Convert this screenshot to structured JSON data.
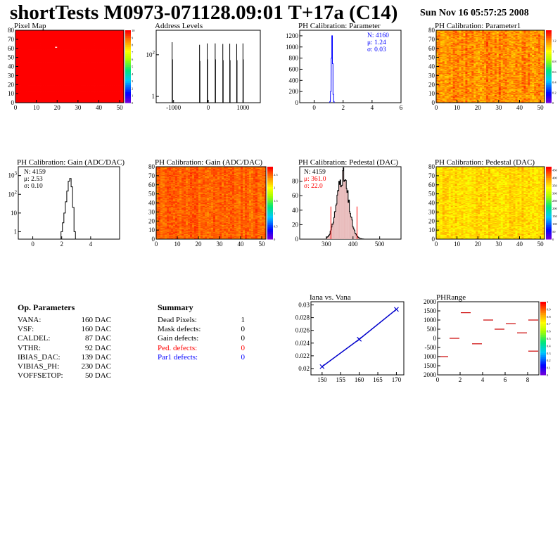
{
  "page": {
    "title": "shortTests M0973-071128.09:01 T+17a (C14)",
    "date": "Sun Nov 16 05:57:25 2008"
  },
  "op_parameters": {
    "header": "Op. Parameters",
    "rows": [
      {
        "name": "VANA:",
        "value": "160 DAC"
      },
      {
        "name": "VSF:",
        "value": "160 DAC"
      },
      {
        "name": "CALDEL:",
        "value": "87 DAC"
      },
      {
        "name": "VTHR:",
        "value": "92 DAC"
      },
      {
        "name": "IBIAS_DAC:",
        "value": "139 DAC"
      },
      {
        "name": "VIBIAS_PH:",
        "value": "230 DAC"
      },
      {
        "name": "VOFFSETOP:",
        "value": "50 DAC"
      }
    ]
  },
  "summary": {
    "header": "Summary",
    "rows": [
      {
        "name": "Dead Pixels:",
        "value": "1",
        "color": "#000000"
      },
      {
        "name": "Mask defects:",
        "value": "0",
        "color": "#000000"
      },
      {
        "name": "Gain defects:",
        "value": "0",
        "color": "#000000"
      },
      {
        "name": "Ped. defects:",
        "value": "0",
        "color": "#ff0000"
      },
      {
        "name": "Par1 defects:",
        "value": "0",
        "color": "#0000ff"
      }
    ]
  },
  "chart_data": [
    {
      "id": "pixel_map",
      "type": "heatmap",
      "title": "Pixel Map",
      "xlim": [
        0,
        52
      ],
      "ylim": [
        0,
        80
      ],
      "xticks": [
        "0",
        "10",
        "20",
        "30",
        "40",
        "50"
      ],
      "yticks": [
        "0",
        "10",
        "20",
        "30",
        "40",
        "50",
        "60",
        "70",
        "80"
      ],
      "zticks": [
        "0",
        "1",
        "2",
        "3",
        "4",
        "5",
        "6",
        "7",
        "8",
        "9",
        "10"
      ],
      "zlim": [
        0,
        10
      ],
      "uniform_value": 10,
      "special_cells": [
        {
          "x": 19,
          "y": 61,
          "value": 0
        }
      ]
    },
    {
      "id": "address_levels",
      "type": "bar",
      "title": "Address Levels",
      "log_y": true,
      "xlim": [
        -1500,
        1500
      ],
      "ylim": [
        0.5,
        1500
      ],
      "xticks": [
        "-1000",
        "0",
        "1000"
      ],
      "yticks": [
        "1",
        "10^2"
      ],
      "peaks": [
        {
          "x": -1040,
          "y": 400
        },
        {
          "x": -1030,
          "y": 60
        },
        {
          "x": -250,
          "y": 300
        },
        {
          "x": -240,
          "y": 50
        },
        {
          "x": -30,
          "y": 350
        },
        {
          "x": -20,
          "y": 60
        },
        {
          "x": 200,
          "y": 350
        },
        {
          "x": 210,
          "y": 60
        },
        {
          "x": 420,
          "y": 330
        },
        {
          "x": 430,
          "y": 55
        },
        {
          "x": 620,
          "y": 340
        },
        {
          "x": 630,
          "y": 55
        },
        {
          "x": 820,
          "y": 330
        },
        {
          "x": 830,
          "y": 55
        },
        {
          "x": 1000,
          "y": 350
        },
        {
          "x": 1010,
          "y": 60
        }
      ]
    },
    {
      "id": "ph_calib_param",
      "type": "bar",
      "title": "PH Calibration: Parameter",
      "xlim": [
        -1,
        6
      ],
      "ylim": [
        0,
        1300
      ],
      "xticks": [
        "0",
        "2",
        "4",
        "6"
      ],
      "yticks": [
        "0",
        "200",
        "400",
        "600",
        "800",
        "1000",
        "1200"
      ],
      "stats": [
        "N: 4160",
        "μ: 1.24",
        "σ: 0.03"
      ],
      "stats_color": "#0000ff",
      "line_color": "#0000ff",
      "bins": [
        {
          "x": 1.1,
          "y": 20
        },
        {
          "x": 1.15,
          "y": 200
        },
        {
          "x": 1.2,
          "y": 800
        },
        {
          "x": 1.24,
          "y": 1200
        },
        {
          "x": 1.28,
          "y": 700
        },
        {
          "x": 1.32,
          "y": 150
        },
        {
          "x": 1.36,
          "y": 20
        }
      ]
    },
    {
      "id": "ph_calib_param1",
      "type": "heatmap",
      "title": "PH Calibration: Parameter1",
      "xlim": [
        0,
        52
      ],
      "ylim": [
        0,
        80
      ],
      "xticks": [
        "0",
        "10",
        "20",
        "30",
        "40",
        "50"
      ],
      "yticks": [
        "0",
        "10",
        "20",
        "30",
        "40",
        "50",
        "60",
        "70",
        "80"
      ],
      "zticks": [
        "0",
        "0.2",
        "0.4",
        "0.6",
        "0.8",
        "1",
        "1.2"
      ],
      "zlim": [
        0,
        1.4
      ],
      "mean": 1.2,
      "spread": 0.08
    },
    {
      "id": "gain_hist",
      "type": "bar",
      "title": "PH Calibration: Gain (ADC/DAC)",
      "log_y": true,
      "xlim": [
        -1,
        6
      ],
      "ylim": [
        0.4,
        3000
      ],
      "xticks": [
        "0",
        "2",
        "4"
      ],
      "yticks": [
        "1",
        "10",
        "10^2",
        "10^3"
      ],
      "stats": [
        "N: 4159",
        "μ: 2.53",
        "σ: 0.10"
      ],
      "stats_color": "#000000",
      "line_color": "#000000",
      "bins": [
        {
          "x": 2.0,
          "y": 1
        },
        {
          "x": 2.1,
          "y": 3
        },
        {
          "x": 2.2,
          "y": 10
        },
        {
          "x": 2.3,
          "y": 40
        },
        {
          "x": 2.4,
          "y": 150
        },
        {
          "x": 2.5,
          "y": 500
        },
        {
          "x": 2.6,
          "y": 700
        },
        {
          "x": 2.7,
          "y": 250
        },
        {
          "x": 2.8,
          "y": 20
        },
        {
          "x": 2.9,
          "y": 1
        }
      ]
    },
    {
      "id": "gain_map",
      "type": "heatmap",
      "title": "PH Calibration: Gain (ADC/DAC)",
      "xlim": [
        0,
        52
      ],
      "ylim": [
        0,
        80
      ],
      "xticks": [
        "0",
        "10",
        "20",
        "30",
        "40",
        "50"
      ],
      "yticks": [
        "0",
        "10",
        "20",
        "30",
        "40",
        "50",
        "60",
        "70",
        "80"
      ],
      "zticks": [
        "0",
        "0.5",
        "1",
        "1.5",
        "2",
        "2.5"
      ],
      "zlim": [
        0,
        2.8
      ],
      "mean": 2.53,
      "spread": 0.1
    },
    {
      "id": "pedestal_hist",
      "type": "bar",
      "title": "PH Calibration: Pedestal (DAC)",
      "xlim": [
        200,
        580
      ],
      "ylim": [
        0,
        100
      ],
      "xticks": [
        "300",
        "400",
        "500"
      ],
      "yticks": [
        "0",
        "20",
        "40",
        "60",
        "80"
      ],
      "stats": [
        "N: 4159",
        "μ: 361.0",
        "σ: 22.0"
      ],
      "stats_colors": [
        "#000000",
        "#ff0000",
        "#ff0000"
      ],
      "mean": 361,
      "sigma": 22,
      "peak": 87,
      "cut_lines": [
        {
          "x": 317,
          "y": 45
        },
        {
          "x": 415,
          "y": 45
        }
      ]
    },
    {
      "id": "pedestal_map",
      "type": "heatmap",
      "title": "PH Calibration: Pedestal (DAC)",
      "xlim": [
        0,
        52
      ],
      "ylim": [
        0,
        80
      ],
      "xticks": [
        "0",
        "10",
        "20",
        "30",
        "40",
        "50"
      ],
      "yticks": [
        "0",
        "10",
        "20",
        "30",
        "40",
        "50",
        "60",
        "70",
        "80"
      ],
      "zticks": [
        "0",
        "50",
        "100",
        "150",
        "200",
        "250",
        "300",
        "350",
        "400",
        "450"
      ],
      "zlim": [
        0,
        470
      ],
      "mean": 361,
      "spread": 22
    },
    {
      "id": "iana_vana",
      "type": "line",
      "title": "Iana vs. Vana",
      "xlim": [
        147,
        172
      ],
      "ylim": [
        0.019,
        0.0305
      ],
      "xticks": [
        "150",
        "155",
        "160",
        "165",
        "170"
      ],
      "yticks": [
        "0.02",
        "0.022",
        "0.024",
        "0.026",
        "0.028",
        "0.03"
      ],
      "x": [
        150,
        160,
        170
      ],
      "y": [
        0.0203,
        0.0246,
        0.0293
      ]
    },
    {
      "id": "ph_range",
      "type": "scatter",
      "title": "PHRange",
      "xlim": [
        0,
        9
      ],
      "ylim": [
        -2000,
        2000
      ],
      "xticks": [
        "0",
        "2",
        "4",
        "6",
        "8"
      ],
      "yticks": [
        "2000",
        "1500",
        "1000",
        "500",
        "0",
        "-500",
        "1000",
        "1500",
        "2000"
      ],
      "zticks": [
        "0",
        "0.1",
        "0.2",
        "0.3",
        "0.4",
        "0.5",
        "0.6",
        "0.7",
        "0.8",
        "0.9",
        "1"
      ],
      "zlim": [
        0,
        1
      ],
      "segments": [
        {
          "x0": 0,
          "x1": 1,
          "y": -1000
        },
        {
          "x0": 1,
          "x1": 2,
          "y": 0
        },
        {
          "x0": 2,
          "x1": 3,
          "y": 1400
        },
        {
          "x0": 3,
          "x1": 4,
          "y": -300
        },
        {
          "x0": 4,
          "x1": 5,
          "y": 1000
        },
        {
          "x0": 5,
          "x1": 6,
          "y": 500
        },
        {
          "x0": 6,
          "x1": 7,
          "y": 800
        },
        {
          "x0": 7,
          "x1": 8,
          "y": 300
        },
        {
          "x0": 8,
          "x1": 9,
          "y": 1000
        },
        {
          "x0": 8,
          "x1": 9,
          "y": -700
        }
      ]
    }
  ]
}
